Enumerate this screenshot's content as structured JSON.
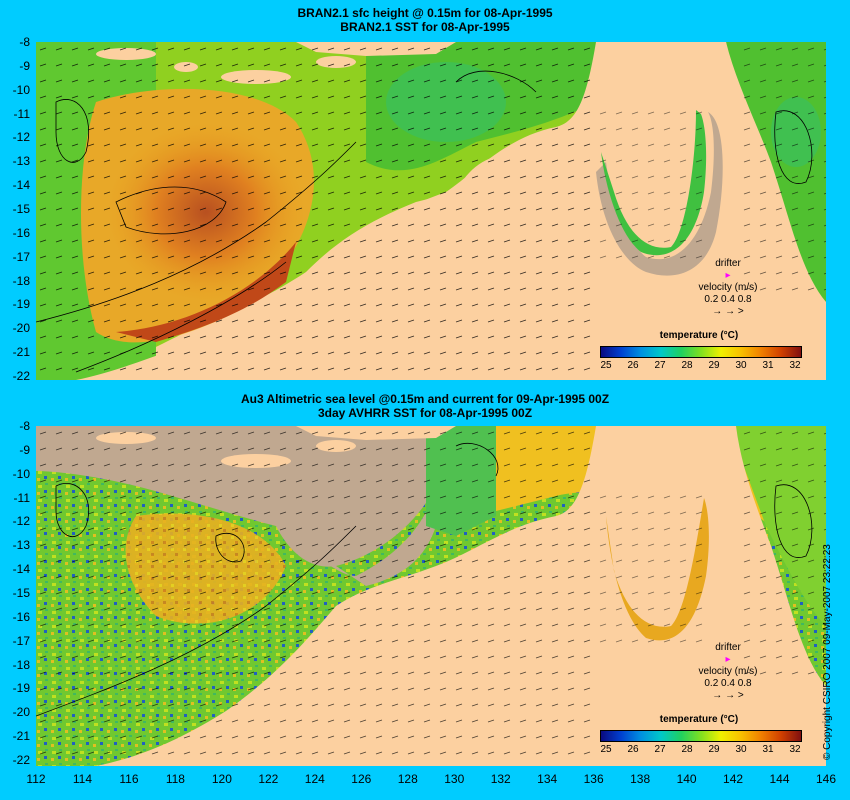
{
  "panels": [
    {
      "title1": "BRAN2.1 sfc height @ 0.15m for 08-Apr-1995",
      "title2": "BRAN2.1 SST for 08-Apr-1995"
    },
    {
      "title1": "Au3 Altimetric sea level  @0.15m and current for 09-Apr-1995 00Z",
      "title2": "3day AVHRR SST for 08-Apr-1995 00Z"
    }
  ],
  "y_ticks": [
    "-8",
    "-9",
    "-10",
    "-11",
    "-12",
    "-13",
    "-14",
    "-15",
    "-16",
    "-17",
    "-18",
    "-19",
    "-20",
    "-21",
    "-22"
  ],
  "x_ticks": [
    "112",
    "114",
    "116",
    "118",
    "120",
    "122",
    "124",
    "126",
    "128",
    "130",
    "132",
    "134",
    "136",
    "138",
    "140",
    "142",
    "144",
    "146"
  ],
  "legend": {
    "title": "temperature (°C)",
    "ticks": [
      "25",
      "26",
      "27",
      "28",
      "29",
      "30",
      "31",
      "32"
    ]
  },
  "drifter": {
    "label": "drifter",
    "velocity_label": "velocity (m/s)",
    "scale": "0.2 0.4 0.8",
    "arrows": "→  →  >"
  },
  "copyright": "© Copyright CSIRO 2007   09-May-2007 23:22:23",
  "colors": {
    "background": "#00ccff",
    "land": "#fcd0a0",
    "cloud": "#c0a890",
    "warm": "#c86420",
    "cool": "#20c8c8"
  }
}
